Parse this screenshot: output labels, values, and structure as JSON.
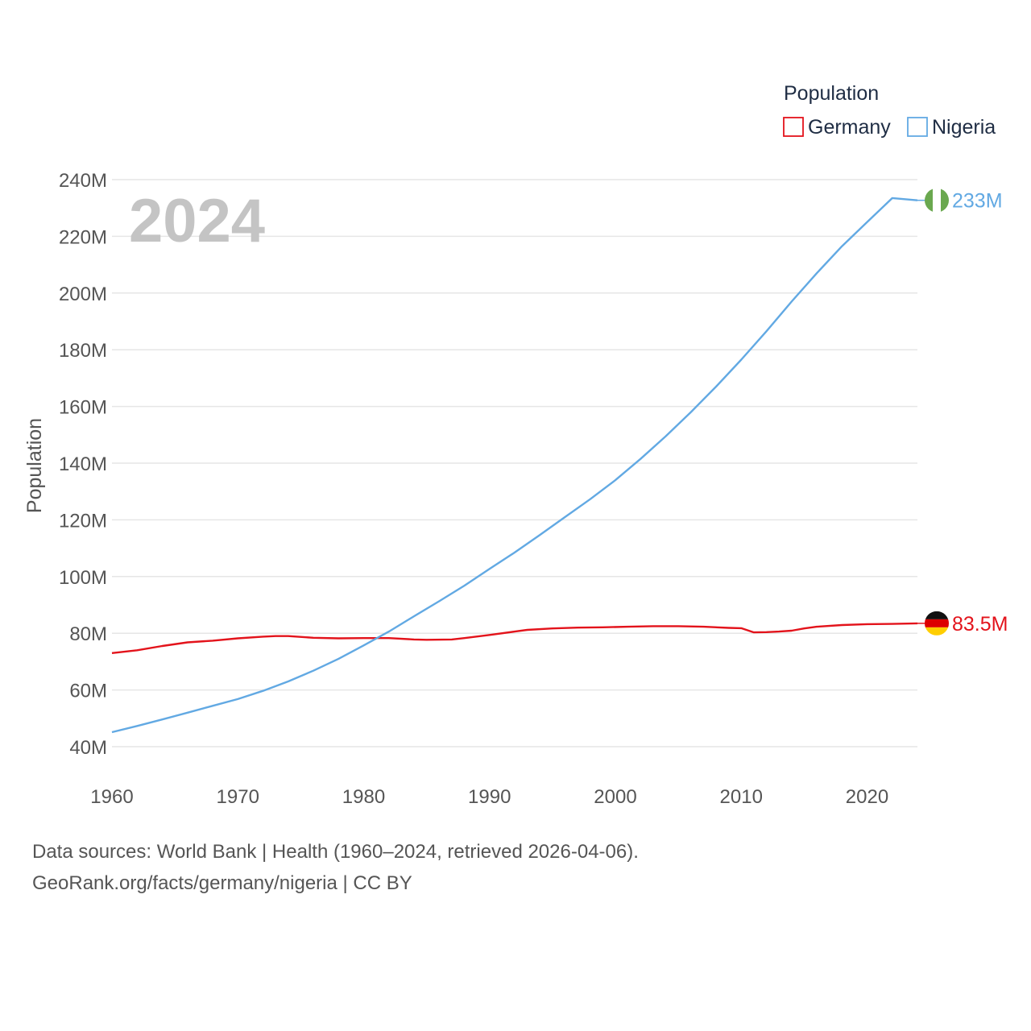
{
  "chart_data": {
    "type": "line",
    "title": "2024",
    "ylabel": "Population",
    "xlabel": "",
    "xlim": [
      1960,
      2024
    ],
    "ylim": [
      40000000,
      240000000
    ],
    "x_ticks": [
      1960,
      1970,
      1980,
      1990,
      2000,
      2010,
      2020
    ],
    "x_tick_labels": [
      "1960",
      "1970",
      "1980",
      "1990",
      "2000",
      "2010",
      "2020"
    ],
    "y_ticks": [
      40000000,
      60000000,
      80000000,
      100000000,
      120000000,
      140000000,
      160000000,
      180000000,
      200000000,
      220000000,
      240000000
    ],
    "y_tick_labels": [
      "40M",
      "60M",
      "80M",
      "100M",
      "120M",
      "140M",
      "160M",
      "180M",
      "200M",
      "220M",
      "240M"
    ],
    "legend": {
      "title": "Population",
      "position": "top-right"
    },
    "series": [
      {
        "name": "Germany",
        "color": "#e3131b",
        "end_label": "83.5M",
        "flag": "germany-flag-icon",
        "points": [
          [
            1960,
            73000000
          ],
          [
            1962,
            74000000
          ],
          [
            1964,
            75500000
          ],
          [
            1966,
            76800000
          ],
          [
            1968,
            77400000
          ],
          [
            1970,
            78200000
          ],
          [
            1972,
            78800000
          ],
          [
            1973,
            79000000
          ],
          [
            1974,
            79000000
          ],
          [
            1976,
            78400000
          ],
          [
            1978,
            78200000
          ],
          [
            1980,
            78300000
          ],
          [
            1982,
            78300000
          ],
          [
            1984,
            77800000
          ],
          [
            1985,
            77700000
          ],
          [
            1987,
            77800000
          ],
          [
            1988,
            78300000
          ],
          [
            1990,
            79400000
          ],
          [
            1992,
            80600000
          ],
          [
            1993,
            81200000
          ],
          [
            1995,
            81700000
          ],
          [
            1997,
            82000000
          ],
          [
            1999,
            82100000
          ],
          [
            2001,
            82300000
          ],
          [
            2003,
            82500000
          ],
          [
            2005,
            82500000
          ],
          [
            2007,
            82300000
          ],
          [
            2009,
            81900000
          ],
          [
            2010,
            81800000
          ],
          [
            2011,
            80300000
          ],
          [
            2012,
            80400000
          ],
          [
            2013,
            80600000
          ],
          [
            2014,
            80900000
          ],
          [
            2015,
            81700000
          ],
          [
            2016,
            82300000
          ],
          [
            2018,
            82900000
          ],
          [
            2020,
            83200000
          ],
          [
            2022,
            83300000
          ],
          [
            2024,
            83500000
          ]
        ]
      },
      {
        "name": "Nigeria",
        "color": "#62a9e3",
        "end_label": "233M",
        "flag": "nigeria-flag-icon",
        "points": [
          [
            1960,
            45100000
          ],
          [
            1962,
            47300000
          ],
          [
            1964,
            49600000
          ],
          [
            1966,
            52000000
          ],
          [
            1968,
            54400000
          ],
          [
            1970,
            56800000
          ],
          [
            1972,
            59700000
          ],
          [
            1974,
            63000000
          ],
          [
            1976,
            66800000
          ],
          [
            1978,
            71000000
          ],
          [
            1980,
            75700000
          ],
          [
            1982,
            80600000
          ],
          [
            1984,
            86000000
          ],
          [
            1986,
            91300000
          ],
          [
            1988,
            96800000
          ],
          [
            1990,
            102700000
          ],
          [
            1992,
            108500000
          ],
          [
            1994,
            114700000
          ],
          [
            1996,
            121000000
          ],
          [
            1998,
            127300000
          ],
          [
            2000,
            134000000
          ],
          [
            2002,
            141500000
          ],
          [
            2004,
            149500000
          ],
          [
            2006,
            158000000
          ],
          [
            2008,
            167000000
          ],
          [
            2010,
            176500000
          ],
          [
            2012,
            186500000
          ],
          [
            2014,
            197000000
          ],
          [
            2016,
            207000000
          ],
          [
            2018,
            216500000
          ],
          [
            2020,
            225000000
          ],
          [
            2022,
            233500000
          ],
          [
            2024,
            232700000
          ]
        ]
      }
    ],
    "annotations": [
      "2024"
    ]
  },
  "footer": {
    "line1": "Data sources: World Bank | Health (1960–2024, retrieved 2026-04-06).",
    "line2": "GeoRank.org/facts/germany/nigeria | CC BY"
  }
}
